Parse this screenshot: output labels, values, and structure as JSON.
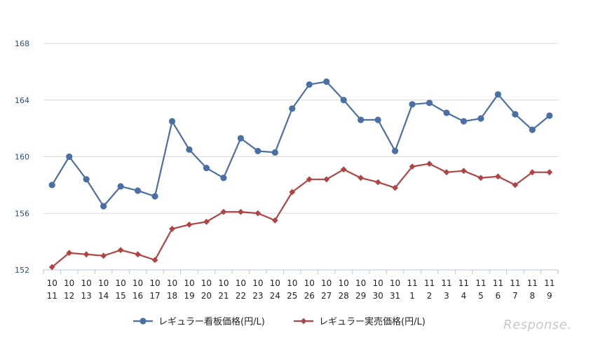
{
  "chart_data": {
    "type": "line",
    "title": "",
    "xlabel": "",
    "ylabel": "",
    "ylim": [
      152,
      168
    ],
    "yticks": [
      152,
      156,
      160,
      164,
      168
    ],
    "grid": true,
    "legend_position": "bottom",
    "categories": [
      [
        "10",
        "11"
      ],
      [
        "10",
        "12"
      ],
      [
        "10",
        "13"
      ],
      [
        "10",
        "14"
      ],
      [
        "10",
        "15"
      ],
      [
        "10",
        "16"
      ],
      [
        "10",
        "17"
      ],
      [
        "10",
        "18"
      ],
      [
        "10",
        "19"
      ],
      [
        "10",
        "20"
      ],
      [
        "10",
        "21"
      ],
      [
        "10",
        "22"
      ],
      [
        "10",
        "23"
      ],
      [
        "10",
        "24"
      ],
      [
        "10",
        "25"
      ],
      [
        "10",
        "26"
      ],
      [
        "10",
        "27"
      ],
      [
        "10",
        "28"
      ],
      [
        "10",
        "29"
      ],
      [
        "10",
        "30"
      ],
      [
        "10",
        "31"
      ],
      [
        "11",
        "1"
      ],
      [
        "11",
        "2"
      ],
      [
        "11",
        "3"
      ],
      [
        "11",
        "4"
      ],
      [
        "11",
        "5"
      ],
      [
        "11",
        "6"
      ],
      [
        "11",
        "7"
      ],
      [
        "11",
        "8"
      ],
      [
        "11",
        "9"
      ]
    ],
    "series": [
      {
        "name": "レギュラー看板価格(円/L)",
        "color": "#4a6fa5",
        "marker": "circle",
        "values": [
          158.0,
          160.0,
          158.4,
          156.5,
          157.9,
          157.6,
          157.2,
          162.5,
          160.5,
          159.2,
          158.5,
          161.3,
          160.4,
          160.3,
          163.4,
          165.1,
          165.3,
          164.0,
          162.6,
          162.6,
          160.4,
          163.7,
          163.8,
          163.1,
          162.5,
          162.7,
          164.4,
          163.0,
          161.9,
          162.9
        ]
      },
      {
        "name": "レギュラー実売価格(円/L)",
        "color": "#b04444",
        "marker": "diamond",
        "values": [
          152.2,
          153.2,
          153.1,
          153.0,
          153.4,
          153.1,
          152.7,
          154.9,
          155.2,
          155.4,
          156.1,
          156.1,
          156.0,
          155.5,
          157.5,
          158.4,
          158.4,
          159.1,
          158.5,
          158.2,
          157.8,
          159.3,
          159.5,
          158.9,
          159.0,
          158.5,
          158.6,
          158.0,
          158.9,
          158.9
        ]
      }
    ]
  },
  "watermark": "Response."
}
